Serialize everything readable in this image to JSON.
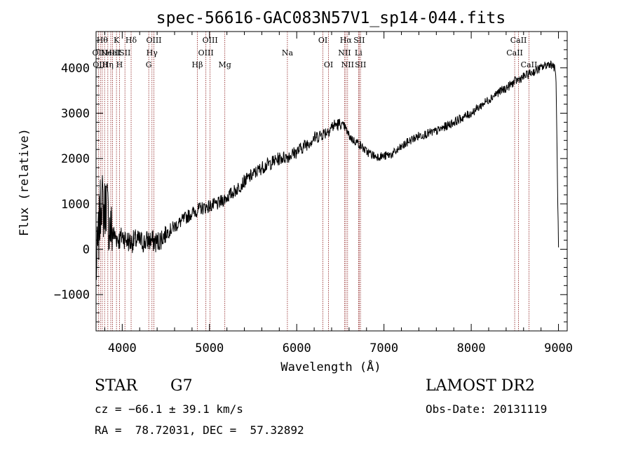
{
  "chart_data": {
    "type": "line",
    "title": "spec-56616-GAC083N57V1_sp14-044.fits",
    "xlabel": "Wavelength (Å)",
    "ylabel": "Flux (relative)",
    "xlim": [
      3700,
      9100
    ],
    "ylim": [
      -1800,
      4800
    ],
    "xticks": [
      4000,
      5000,
      6000,
      7000,
      8000,
      9000
    ],
    "yticks": [
      -1000,
      0,
      1000,
      2000,
      3000,
      4000
    ],
    "xtick_labels": [
      "4000",
      "5000",
      "6000",
      "7000",
      "8000",
      "9000"
    ],
    "ytick_labels": [
      "−1000",
      "0",
      "1000",
      "2000",
      "3000",
      "4000"
    ],
    "grid": false,
    "series": [
      {
        "color": "#000000",
        "x": [
          3700,
          3730,
          3760,
          3790,
          3820,
          3850,
          3880,
          3910,
          3940,
          3970,
          4000,
          4050,
          4100,
          4150,
          4200,
          4250,
          4300,
          4350,
          4400,
          4500,
          4600,
          4700,
          4800,
          4900,
          5000,
          5100,
          5200,
          5300,
          5400,
          5500,
          5600,
          5700,
          5800,
          5900,
          6000,
          6100,
          6200,
          6300,
          6350,
          6400,
          6450,
          6500,
          6550,
          6600,
          6650,
          6700,
          6750,
          6800,
          6850,
          6900,
          6950,
          7000,
          7100,
          7200,
          7300,
          7400,
          7500,
          7600,
          7700,
          7800,
          7900,
          8000,
          8100,
          8200,
          8300,
          8400,
          8500,
          8550,
          8600,
          8650,
          8700,
          8750,
          8800,
          8850,
          8900,
          8940,
          8970,
          9000
        ],
        "y": [
          -500,
          300,
          1200,
          800,
          1100,
          500,
          400,
          300,
          250,
          200,
          300,
          200,
          150,
          200,
          180,
          150,
          200,
          180,
          150,
          350,
          500,
          650,
          800,
          900,
          950,
          1000,
          1150,
          1300,
          1500,
          1650,
          1800,
          1900,
          2000,
          2050,
          2150,
          2300,
          2450,
          2550,
          2600,
          2700,
          2750,
          2750,
          2700,
          2500,
          2400,
          2350,
          2250,
          2150,
          2100,
          2050,
          2050,
          2050,
          2100,
          2250,
          2400,
          2500,
          2550,
          2600,
          2700,
          2800,
          2900,
          3000,
          3150,
          3300,
          3450,
          3550,
          3700,
          3750,
          3800,
          3850,
          3900,
          3950,
          4000,
          4050,
          4100,
          4050,
          3900,
          0
        ]
      }
    ],
    "lines": [
      {
        "wave": 3727,
        "labels": [
          "",
          "OII",
          ""
        ]
      },
      {
        "wave": 3750,
        "labels": [
          "",
          "",
          "OIII"
        ]
      },
      {
        "wave": 3771,
        "labels": [
          "Hθ",
          "",
          ""
        ]
      },
      {
        "wave": 3798,
        "labels": [
          "",
          "",
          ""
        ]
      },
      {
        "wave": 3835,
        "labels": [
          "",
          "",
          "Hη"
        ]
      },
      {
        "wave": 3869,
        "labels": [
          "",
          "NeIII",
          ""
        ]
      },
      {
        "wave": 3889,
        "labels": [
          "",
          "HeI",
          ""
        ]
      },
      {
        "wave": 3934,
        "labels": [
          "K",
          "",
          ""
        ]
      },
      {
        "wave": 3969,
        "labels": [
          "",
          "",
          "H"
        ]
      },
      {
        "wave": 4031,
        "labels": [
          "",
          "SII",
          ""
        ]
      },
      {
        "wave": 4102,
        "labels": [
          "Hδ",
          "",
          ""
        ]
      },
      {
        "wave": 4304,
        "labels": [
          "",
          "",
          "G"
        ]
      },
      {
        "wave": 4341,
        "labels": [
          "",
          "Hγ",
          ""
        ]
      },
      {
        "wave": 4363,
        "labels": [
          "OIII",
          "",
          ""
        ]
      },
      {
        "wave": 4861,
        "labels": [
          "",
          "",
          "Hβ"
        ]
      },
      {
        "wave": 4959,
        "labels": [
          "",
          "OIII",
          ""
        ]
      },
      {
        "wave": 5007,
        "labels": [
          "OIII",
          "",
          ""
        ]
      },
      {
        "wave": 5176,
        "labels": [
          "",
          "",
          "Mg"
        ]
      },
      {
        "wave": 5893,
        "labels": [
          "",
          "Na",
          ""
        ]
      },
      {
        "wave": 6300,
        "labels": [
          "OI",
          "",
          ""
        ]
      },
      {
        "wave": 6364,
        "labels": [
          "",
          "",
          "OI"
        ]
      },
      {
        "wave": 6548,
        "labels": [
          "",
          "NII",
          ""
        ]
      },
      {
        "wave": 6563,
        "labels": [
          "Hα",
          "",
          ""
        ]
      },
      {
        "wave": 6583,
        "labels": [
          "",
          "",
          "NII"
        ]
      },
      {
        "wave": 6708,
        "labels": [
          "",
          "Li",
          ""
        ]
      },
      {
        "wave": 6716,
        "labels": [
          "SII",
          "",
          ""
        ]
      },
      {
        "wave": 6731,
        "labels": [
          "",
          "",
          "SII"
        ]
      },
      {
        "wave": 8498,
        "labels": [
          "",
          "CaII",
          ""
        ]
      },
      {
        "wave": 8542,
        "labels": [
          "CaII",
          "",
          ""
        ]
      },
      {
        "wave": 8662,
        "labels": [
          "",
          "",
          "CaII"
        ]
      }
    ]
  },
  "info": {
    "object_class": "STAR",
    "subclass": "G7",
    "survey": "LAMOST DR2",
    "redshift": "cz = −66.1 ± 39.1 km/s",
    "obs_date": "Obs-Date: 20131119",
    "coords": "RA =  78.72031, DEC =  57.32892"
  },
  "colors": {
    "spectrum": "#000000",
    "line_markers": "#8b1a1a",
    "axes": "#000000",
    "background": "#ffffff"
  }
}
